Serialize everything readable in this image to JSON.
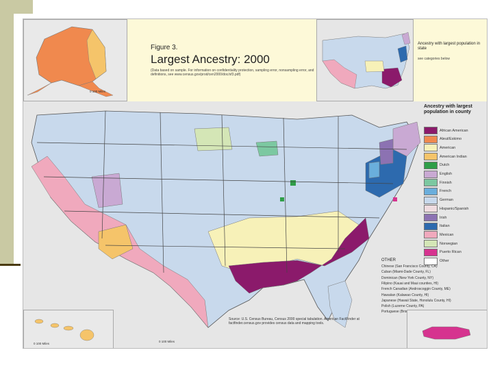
{
  "figure": {
    "label": "Figure 3.",
    "title": "Largest Ancestry: 2000",
    "note": "(Data based on sample. For information on confidentiality protection, sampling error, nonsampling error, and definitions, see www.census.gov/prod/cen2000/doc/sf3.pdf)"
  },
  "state_legend": {
    "title": "Ancestry with largest population in state",
    "subtitle": "see categories below"
  },
  "county_legend": {
    "title": "Ancestry with largest population in county",
    "items": [
      {
        "label": "African American",
        "color": "#8b1a6b"
      },
      {
        "label": "Aleut/Eskimo",
        "color": "#f0894e"
      },
      {
        "label": "American",
        "color": "#f7f1b8"
      },
      {
        "label": "American Indian",
        "color": "#f5c46a"
      },
      {
        "label": "Dutch",
        "color": "#2f9e48"
      },
      {
        "label": "English",
        "color": "#c9a9d3"
      },
      {
        "label": "Finnish",
        "color": "#7cc8a1"
      },
      {
        "label": "French",
        "color": "#6aaedc"
      },
      {
        "label": "German",
        "color": "#c8d9ec"
      },
      {
        "label": "Hispanic/Spanish",
        "color": "#f0dce0"
      },
      {
        "label": "Irish",
        "color": "#8c72b2"
      },
      {
        "label": "Italian",
        "color": "#2d6aae"
      },
      {
        "label": "Mexican",
        "color": "#f0a9bd"
      },
      {
        "label": "Norwegian",
        "color": "#d4e6b6"
      },
      {
        "label": "Puerto Rican",
        "color": "#d6338f"
      },
      {
        "label": "Other",
        "color": "#ffffff"
      }
    ]
  },
  "other": {
    "title": "OTHER",
    "lines": [
      "Chinese (San Francisco County, CA)",
      "Cuban (Miami-Dade County, FL)",
      "Dominican (New York County, NY)",
      "Filipino (Kauai and Maui counties, HI)",
      "French Canadian (Androscoggin County, ME)",
      "Hawaiian (Kalawao County, HI)",
      "Japanese (Hawaii State, Honolulu County, HI)",
      "Polish (Luzerne County, PA)",
      "Portuguese (Bristol County, MA and Bristol County, RI)"
    ]
  },
  "source": "Source: U.S. Census Bureau, Census 2000 special tabulation. American FactFinder at factfinder.census.gov provides census data and mapping tools.",
  "scales": {
    "alaska": "0    100 Miles",
    "hawaii": "0    100 Miles",
    "main": "0    100 Miles"
  }
}
